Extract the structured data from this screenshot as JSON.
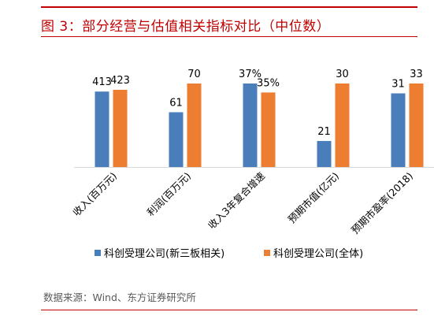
{
  "header": {
    "title": "图 3：部分经营与估值相关指标对比（中位数）"
  },
  "footer": {
    "source": "数据来源：Wind、东方证券研究所"
  },
  "chart_data": {
    "type": "bar",
    "title": "",
    "xlabel": "",
    "ylabel": "",
    "categories": [
      "收入(百万元)",
      "利润(百万元)",
      "收入3年复合增速",
      "预期市值(亿元)",
      "预期市盈率(2018)"
    ],
    "series": [
      {
        "name": "科创受理公司(新三板相关)",
        "color": "#4a7ebb",
        "values": [
          413,
          61,
          37,
          21,
          31
        ],
        "labels": [
          "413",
          "61",
          "37%",
          "21",
          "31"
        ],
        "relative_height": [
          0.84,
          0.61,
          0.93,
          0.29,
          0.82
        ]
      },
      {
        "name": "科创受理公司(全体)",
        "color": "#ed7d31",
        "values": [
          423,
          70,
          35,
          30,
          33
        ],
        "labels": [
          "423",
          "70",
          "35%",
          "30",
          "33"
        ],
        "relative_height": [
          0.86,
          0.93,
          0.83,
          0.93,
          0.93
        ]
      }
    ],
    "grid": false,
    "legend_position": "bottom"
  }
}
